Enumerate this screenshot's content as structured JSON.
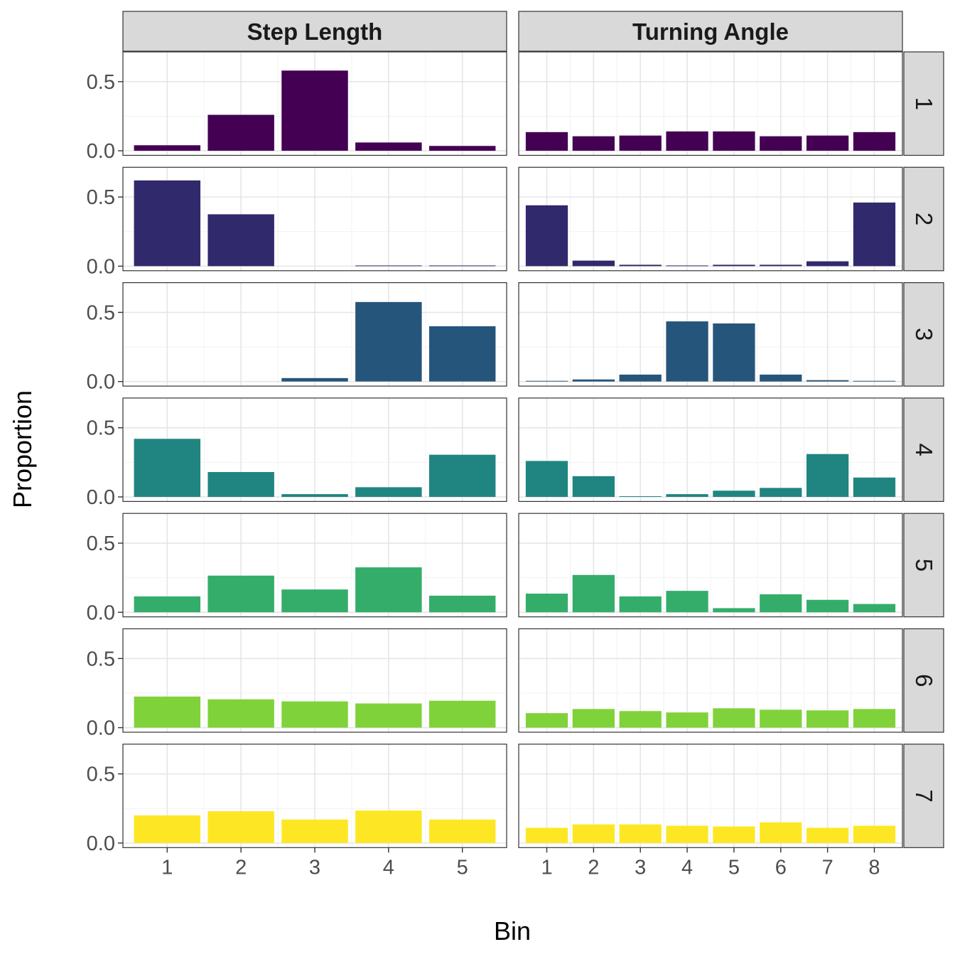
{
  "chart_data": {
    "type": "bar",
    "layout": "facet-grid",
    "xlabel": "Bin",
    "ylabel": "Proportion",
    "ylim": [
      0,
      0.65
    ],
    "yticks": [
      0.0,
      0.5
    ],
    "ytick_labels": [
      "0.0",
      "0.5"
    ],
    "grid": true,
    "colors": [
      "#440154",
      "#30296b",
      "#26557c",
      "#208580",
      "#34ad6b",
      "#80d23a",
      "#fde724"
    ],
    "columns": [
      {
        "name": "Step Length",
        "categories": [
          "1",
          "2",
          "3",
          "4",
          "5"
        ]
      },
      {
        "name": "Turning Angle",
        "categories": [
          "1",
          "2",
          "3",
          "4",
          "5",
          "6",
          "7",
          "8"
        ]
      }
    ],
    "rows": [
      "1",
      "2",
      "3",
      "4",
      "5",
      "6",
      "7"
    ],
    "panels": [
      {
        "row": "1",
        "column": "Step Length",
        "values": [
          0.04,
          0.26,
          0.58,
          0.06,
          0.035
        ]
      },
      {
        "row": "1",
        "column": "Turning Angle",
        "values": [
          0.135,
          0.105,
          0.11,
          0.14,
          0.14,
          0.105,
          0.11,
          0.135
        ]
      },
      {
        "row": "2",
        "column": "Step Length",
        "values": [
          0.62,
          0.375,
          0.0,
          0.005,
          0.005
        ]
      },
      {
        "row": "2",
        "column": "Turning Angle",
        "values": [
          0.44,
          0.04,
          0.01,
          0.005,
          0.01,
          0.01,
          0.035,
          0.46
        ]
      },
      {
        "row": "3",
        "column": "Step Length",
        "values": [
          0.0,
          0.0,
          0.025,
          0.575,
          0.4
        ]
      },
      {
        "row": "3",
        "column": "Turning Angle",
        "values": [
          0.005,
          0.015,
          0.05,
          0.435,
          0.42,
          0.05,
          0.01,
          0.005
        ]
      },
      {
        "row": "4",
        "column": "Step Length",
        "values": [
          0.42,
          0.18,
          0.02,
          0.07,
          0.305
        ]
      },
      {
        "row": "4",
        "column": "Turning Angle",
        "values": [
          0.26,
          0.15,
          0.005,
          0.02,
          0.045,
          0.065,
          0.31,
          0.14
        ]
      },
      {
        "row": "5",
        "column": "Step Length",
        "values": [
          0.115,
          0.265,
          0.165,
          0.325,
          0.12
        ]
      },
      {
        "row": "5",
        "column": "Turning Angle",
        "values": [
          0.135,
          0.27,
          0.115,
          0.155,
          0.03,
          0.13,
          0.09,
          0.06
        ]
      },
      {
        "row": "6",
        "column": "Step Length",
        "values": [
          0.225,
          0.205,
          0.19,
          0.175,
          0.195
        ]
      },
      {
        "row": "6",
        "column": "Turning Angle",
        "values": [
          0.105,
          0.135,
          0.12,
          0.11,
          0.14,
          0.13,
          0.125,
          0.135
        ]
      },
      {
        "row": "7",
        "column": "Step Length",
        "values": [
          0.2,
          0.23,
          0.17,
          0.235,
          0.17
        ]
      },
      {
        "row": "7",
        "column": "Turning Angle",
        "values": [
          0.11,
          0.135,
          0.135,
          0.125,
          0.12,
          0.15,
          0.11,
          0.125
        ]
      }
    ]
  }
}
